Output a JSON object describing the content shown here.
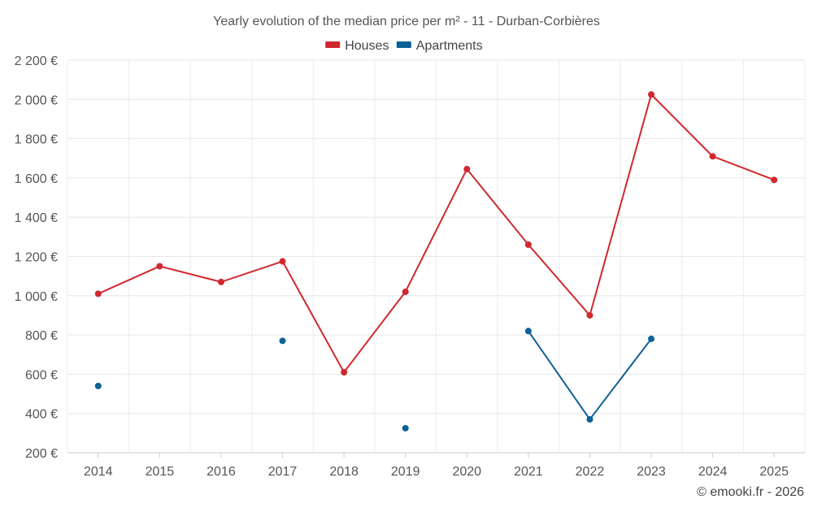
{
  "chart_data": {
    "type": "line",
    "title": "Yearly evolution of the median price per m² - 11 - Durban-Corbières",
    "xlabel": "",
    "ylabel": "",
    "categories": [
      "2014",
      "2015",
      "2016",
      "2017",
      "2018",
      "2019",
      "2020",
      "2021",
      "2022",
      "2023",
      "2024",
      "2025"
    ],
    "ylim": [
      200,
      2200
    ],
    "ytick_values": [
      200,
      400,
      600,
      800,
      1000,
      1200,
      1400,
      1600,
      1800,
      2000,
      2200
    ],
    "ytick_labels": [
      "200 €",
      "400 €",
      "600 €",
      "800 €",
      "1 000 €",
      "1 200 €",
      "1 400 €",
      "1 600 €",
      "1 800 €",
      "2 000 €",
      "2 200 €"
    ],
    "grid": true,
    "legend_position": "top-center",
    "series": [
      {
        "name": "Houses",
        "color": "#d0282e",
        "values": [
          1010,
          1150,
          1070,
          1175,
          610,
          1020,
          1645,
          1260,
          900,
          2025,
          1710,
          1590
        ]
      },
      {
        "name": "Apartments",
        "color": "#0d6196",
        "values": [
          540,
          null,
          null,
          770,
          null,
          325,
          null,
          820,
          370,
          780,
          null,
          null
        ]
      }
    ],
    "credit": "© emooki.fr - 2026"
  }
}
